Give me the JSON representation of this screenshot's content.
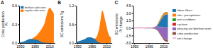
{
  "chart_data": [
    {
      "type": "area",
      "stacked": false,
      "title": "A",
      "ylabel": "Coke production\nPt",
      "x": [
        1950,
        1953,
        1956,
        1958,
        1960,
        1962,
        1965,
        1968,
        1970,
        1972,
        1975,
        1978,
        1980,
        1982,
        1985,
        1988,
        1990,
        1992,
        1995,
        1998,
        2000,
        2002,
        2005,
        2007,
        2010,
        2012,
        2015,
        2017,
        2019
      ],
      "xlim": [
        1948,
        2021
      ],
      "xticks": [
        1950,
        1980,
        2010
      ],
      "ylim": [
        0,
        0.6
      ],
      "yticks": [
        {
          "value": 0.0,
          "label": "0.0"
        },
        0.3,
        0.6
      ],
      "legend": "upper left",
      "series": [
        {
          "name": "beehive coke oven",
          "values": [
            0.01,
            0.015,
            0.02,
            0.025,
            0.03,
            0.04,
            0.05,
            0.06,
            0.065,
            0.065,
            0.063,
            0.06,
            0.058,
            0.055,
            0.05,
            0.04,
            0.03,
            0.02,
            0.012,
            0.008,
            0.005,
            0.004,
            0.003,
            0.002,
            0.001,
            0.001,
            0.001,
            0.001,
            0.001
          ]
        },
        {
          "name": "regular coke oven",
          "values": [
            0.005,
            0.008,
            0.01,
            0.015,
            0.02,
            0.025,
            0.03,
            0.04,
            0.05,
            0.06,
            0.07,
            0.09,
            0.1,
            0.11,
            0.13,
            0.16,
            0.18,
            0.2,
            0.24,
            0.28,
            0.32,
            0.38,
            0.47,
            0.53,
            0.57,
            0.56,
            0.52,
            0.5,
            0.47
          ]
        }
      ]
    },
    {
      "type": "area",
      "stacked": false,
      "title": "B",
      "ylabel": "BC emissions Tg",
      "x": [
        1950,
        1953,
        1956,
        1958,
        1960,
        1962,
        1965,
        1968,
        1970,
        1972,
        1975,
        1978,
        1980,
        1982,
        1985,
        1988,
        1990,
        1992,
        1995,
        1998,
        2000,
        2002,
        2005,
        2007,
        2010,
        2012,
        2015,
        2017,
        2019
      ],
      "xlim": [
        1948,
        2021
      ],
      "xticks": [
        1950,
        1980,
        2010
      ],
      "ylim": [
        0,
        1.2
      ],
      "yticks": [
        {
          "value": 0.0,
          "label": "0.0"
        },
        0.6,
        1.2
      ],
      "series": [
        {
          "values": [
            0.04,
            0.055,
            0.07,
            0.08,
            0.09,
            0.1,
            0.12,
            0.15,
            0.17,
            0.18,
            0.18,
            0.18,
            0.17,
            0.16,
            0.14,
            0.1,
            0.07,
            0.04,
            0.015,
            0.005,
            0.002,
            0.001,
            0.001,
            0.001,
            0.001,
            0.001,
            0.001,
            0.001,
            0.001
          ]
        },
        {
          "values": [
            0.003,
            0.004,
            0.005,
            0.007,
            0.01,
            0.012,
            0.015,
            0.02,
            0.025,
            0.03,
            0.04,
            0.06,
            0.07,
            0.09,
            0.12,
            0.16,
            0.2,
            0.28,
            0.45,
            0.75,
            1.0,
            1.05,
            0.9,
            0.75,
            0.55,
            0.4,
            0.25,
            0.2,
            0.18
          ]
        }
      ]
    },
    {
      "type": "area",
      "stacked": true,
      "title": "C",
      "ylabel": "BC emissions\nPt change",
      "x": [
        1950,
        1955,
        1960,
        1965,
        1970,
        1975,
        1980,
        1985,
        1988,
        1990,
        1992,
        1995,
        1998,
        2000,
        2002,
        2005,
        2008,
        2010,
        2012,
        2015,
        2017,
        2019
      ],
      "xlim": [
        1948,
        2021
      ],
      "xticks": [
        1950,
        1980,
        2010
      ],
      "ylim": [
        -3.0,
        4.5
      ],
      "yticks": [
        {
          "value": -3.0,
          "label": "-3.0"
        },
        -1.5,
        {
          "value": 0.0,
          "label": "0.0"
        },
        1.5,
        {
          "value": 3.0,
          "label": "3.0"
        },
        4.5
      ],
      "legend": "right",
      "series": [
        {
          "name": "fabric filters",
          "values": [
            0,
            0,
            0,
            0,
            0,
            0,
            0,
            0,
            0.01,
            0.05,
            0.15,
            0.3,
            0.6,
            0.9,
            1.2,
            1.7,
            2.1,
            2.4,
            2.6,
            2.7,
            2.75,
            2.8
          ]
        },
        {
          "name": "elec. precipitators",
          "values": [
            0,
            0,
            0,
            0,
            0,
            0,
            0,
            0,
            0.005,
            0.01,
            0.03,
            0.08,
            0.15,
            0.22,
            0.28,
            0.35,
            0.38,
            0.38,
            0.37,
            0.35,
            0.33,
            0.32
          ]
        },
        {
          "name": "wet scrubbers",
          "values": [
            0,
            0,
            0,
            0,
            0,
            0,
            0,
            0,
            0.002,
            0.005,
            0.01,
            0.02,
            0.04,
            0.06,
            0.08,
            0.1,
            0.11,
            0.11,
            0.1,
            0.09,
            0.08,
            0.07
          ]
        },
        {
          "name": "cyclone",
          "values": [
            0,
            0,
            0,
            0,
            0,
            0,
            0,
            0,
            0.001,
            0.003,
            0.005,
            0.01,
            0.02,
            0.03,
            0.04,
            0.05,
            0.055,
            0.055,
            0.05,
            0.045,
            0.04,
            0.035
          ]
        },
        {
          "name": "phasing out beehive oven",
          "values": [
            0,
            0,
            0,
            0,
            0,
            0,
            0,
            0,
            -0.005,
            -0.02,
            -0.07,
            -0.18,
            -0.4,
            -0.65,
            -0.9,
            -1.3,
            -1.7,
            -2.0,
            -2.2,
            -2.35,
            -2.4,
            -2.45
          ]
        },
        {
          "name": "coke production",
          "values": [
            0,
            -0.01,
            -0.02,
            -0.03,
            -0.04,
            -0.05,
            -0.06,
            -0.07,
            -0.08,
            -0.09,
            -0.1,
            -0.12,
            -0.15,
            -0.18,
            -0.22,
            -0.28,
            -0.32,
            -0.35,
            -0.37,
            -0.38,
            -0.38,
            -0.38
          ]
        },
        {
          "name": "net change",
          "type": "line",
          "values": [
            0,
            0.005,
            0.01,
            0.015,
            0.02,
            0.025,
            0.03,
            0.04,
            0.06,
            0.15,
            0.22,
            0.29,
            0.31,
            0.25,
            0.2,
            0.16,
            0.12,
            0.09,
            0.07,
            0.05,
            0.04,
            0.03
          ]
        }
      ]
    }
  ]
}
